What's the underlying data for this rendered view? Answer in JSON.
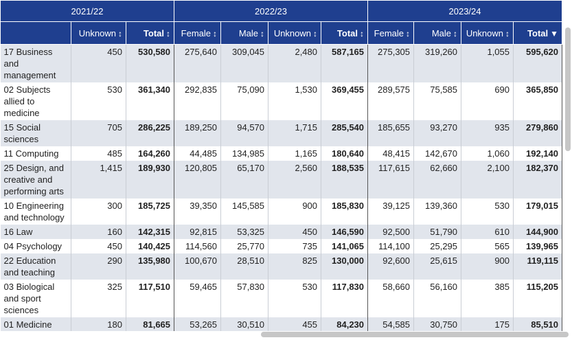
{
  "year_groups": [
    "2021/22",
    "2022/23",
    "2023/24"
  ],
  "column_headers": {
    "y1_unknown": "Unknown",
    "y1_total": "Total",
    "y2_female": "Female",
    "y2_male": "Male",
    "y2_unknown": "Unknown",
    "y2_total": "Total",
    "y3_female": "Female",
    "y3_male": "Male",
    "y3_unknown": "Unknown",
    "y3_total": "Total"
  },
  "sort_icons": {
    "neutral": "↕",
    "descending": "▼"
  },
  "rows": [
    {
      "subject": "17 Business and management",
      "y1_unknown": "450",
      "y1_total": "530,580",
      "y2_female": "275,640",
      "y2_male": "309,045",
      "y2_unknown": "2,480",
      "y2_total": "587,165",
      "y3_female": "275,305",
      "y3_male": "319,260",
      "y3_unknown": "1,055",
      "y3_total": "595,620"
    },
    {
      "subject": "02 Subjects allied to medicine",
      "y1_unknown": "530",
      "y1_total": "361,340",
      "y2_female": "292,835",
      "y2_male": "75,090",
      "y2_unknown": "1,530",
      "y2_total": "369,455",
      "y3_female": "289,575",
      "y3_male": "75,585",
      "y3_unknown": "690",
      "y3_total": "365,850"
    },
    {
      "subject": "15 Social sciences",
      "y1_unknown": "705",
      "y1_total": "286,225",
      "y2_female": "189,250",
      "y2_male": "94,570",
      "y2_unknown": "1,715",
      "y2_total": "285,540",
      "y3_female": "185,655",
      "y3_male": "93,270",
      "y3_unknown": "935",
      "y3_total": "279,860"
    },
    {
      "subject": "11 Computing",
      "y1_unknown": "485",
      "y1_total": "164,260",
      "y2_female": "44,485",
      "y2_male": "134,985",
      "y2_unknown": "1,165",
      "y2_total": "180,640",
      "y3_female": "48,415",
      "y3_male": "142,670",
      "y3_unknown": "1,060",
      "y3_total": "192,140"
    },
    {
      "subject": "25 Design, and creative and performing arts",
      "y1_unknown": "1,415",
      "y1_total": "189,930",
      "y2_female": "120,805",
      "y2_male": "65,170",
      "y2_unknown": "2,560",
      "y2_total": "188,535",
      "y3_female": "117,615",
      "y3_male": "62,660",
      "y3_unknown": "2,100",
      "y3_total": "182,370"
    },
    {
      "subject": "10 Engineering and technology",
      "y1_unknown": "300",
      "y1_total": "185,725",
      "y2_female": "39,350",
      "y2_male": "145,585",
      "y2_unknown": "900",
      "y2_total": "185,830",
      "y3_female": "39,125",
      "y3_male": "139,360",
      "y3_unknown": "530",
      "y3_total": "179,015"
    },
    {
      "subject": "16 Law",
      "y1_unknown": "160",
      "y1_total": "142,315",
      "y2_female": "92,815",
      "y2_male": "53,325",
      "y2_unknown": "450",
      "y2_total": "146,590",
      "y3_female": "92,500",
      "y3_male": "51,790",
      "y3_unknown": "610",
      "y3_total": "144,900"
    },
    {
      "subject": "04 Psychology",
      "y1_unknown": "450",
      "y1_total": "140,425",
      "y2_female": "114,560",
      "y2_male": "25,770",
      "y2_unknown": "735",
      "y2_total": "141,065",
      "y3_female": "114,100",
      "y3_male": "25,295",
      "y3_unknown": "565",
      "y3_total": "139,965"
    },
    {
      "subject": "22 Education and teaching",
      "y1_unknown": "290",
      "y1_total": "135,980",
      "y2_female": "100,670",
      "y2_male": "28,510",
      "y2_unknown": "825",
      "y2_total": "130,000",
      "y3_female": "92,600",
      "y3_male": "25,615",
      "y3_unknown": "900",
      "y3_total": "119,115"
    },
    {
      "subject": "03 Biological and sport sciences",
      "y1_unknown": "325",
      "y1_total": "117,510",
      "y2_female": "59,465",
      "y2_male": "57,830",
      "y2_unknown": "530",
      "y2_total": "117,830",
      "y3_female": "58,660",
      "y3_male": "56,160",
      "y3_unknown": "385",
      "y3_total": "115,205"
    },
    {
      "subject": "01 Medicine",
      "y1_unknown": "180",
      "y1_total": "81,665",
      "y2_female": "53,265",
      "y2_male": "30,510",
      "y2_unknown": "455",
      "y2_total": "84,230",
      "y3_female": "54,585",
      "y3_male": "30,750",
      "y3_unknown": "175",
      "y3_total": "85,510"
    }
  ]
}
